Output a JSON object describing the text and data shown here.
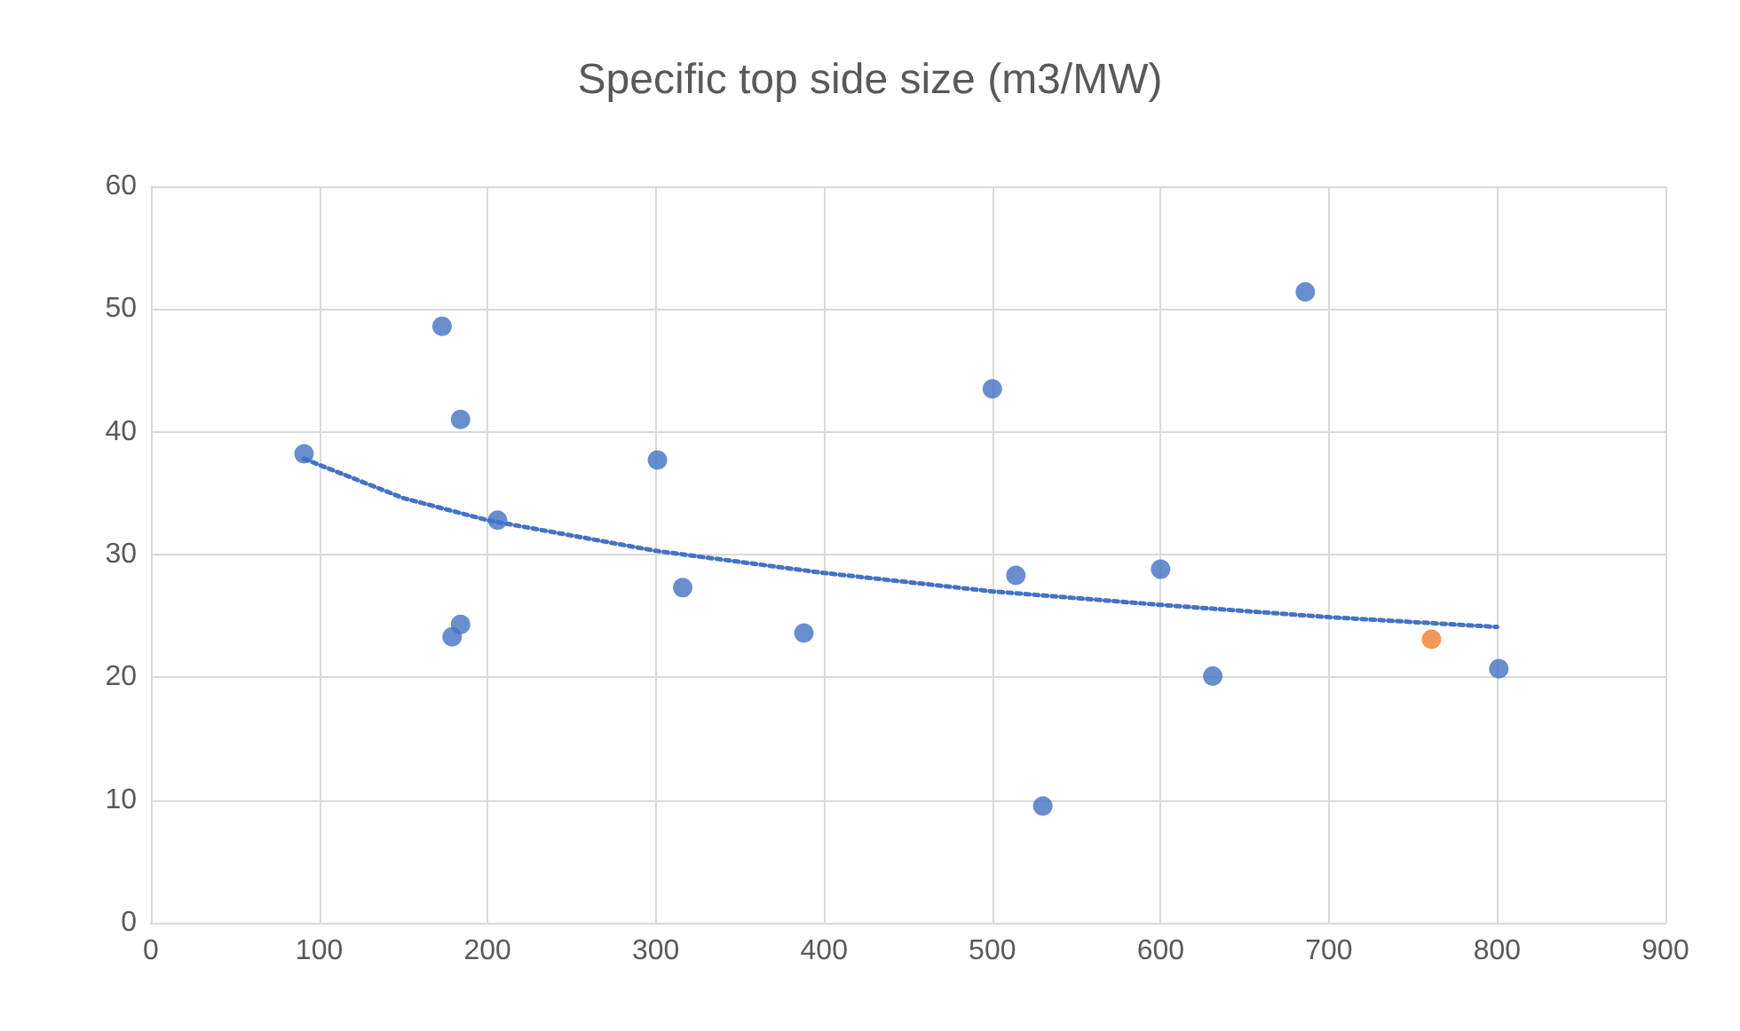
{
  "chart_data": {
    "type": "scatter",
    "title": "Specific top side size (m3/MW)",
    "xlim": [
      0,
      900
    ],
    "xticks": [
      0,
      100,
      200,
      300,
      400,
      500,
      600,
      700,
      800,
      900
    ],
    "ylim": [
      0,
      60
    ],
    "yticks": [
      0,
      10,
      20,
      30,
      40,
      50,
      60
    ],
    "grid": true,
    "marker": "circle",
    "series": [
      {
        "color": "#4472c4",
        "x": [
          91,
          173,
          184,
          206,
          184,
          179,
          301,
          316,
          388,
          500,
          514,
          530,
          600,
          631,
          686,
          801
        ],
        "values": [
          38.2,
          48.6,
          41.0,
          32.8,
          24.3,
          23.3,
          37.7,
          27.3,
          23.6,
          43.5,
          28.3,
          9.5,
          28.8,
          20.1,
          51.4,
          20.7
        ]
      },
      {
        "color": "#ed7d31",
        "x": [
          761
        ],
        "values": [
          23.1
        ]
      },
      {
        "type": "line",
        "color": "#4472c4",
        "line_style": "dotted",
        "marker": "none",
        "x": [
          91,
          150,
          200,
          300,
          400,
          500,
          600,
          700,
          800
        ],
        "values": [
          37.8,
          34.6,
          32.8,
          30.3,
          28.5,
          27.0,
          25.9,
          24.9,
          24.1
        ]
      }
    ]
  }
}
